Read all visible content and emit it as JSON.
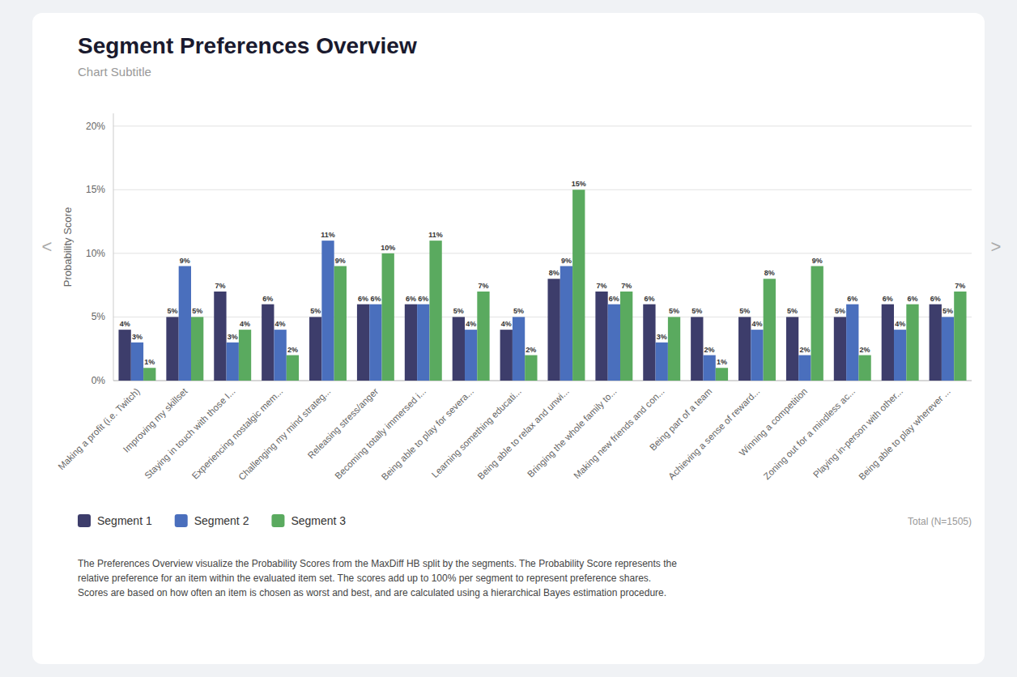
{
  "chart_data": {
    "type": "bar",
    "title": "Segment Preferences Overview",
    "subtitle": "Chart Subtitle",
    "ylabel": "Probability Score",
    "annotations": [
      "Total (N=1505)",
      "The Preferences Overview visualize the Probability Scores from the MaxDiff HB split by the segments. The Probability Score represents the\nrelative preference for an item within the evaluated item set. The scores add up to 100% per segment to represent preference shares.\nScores are based on how often an item is chosen as worst and best, and are calculated using a hierarchical Bayes estimation procedure.",
      "<",
      ">"
    ],
    "categories": [
      "Making a profit (i.e. Twitch)",
      "Improving my skillset",
      "Staying in touch with those I...",
      "Experiencing nostalgic mem...",
      "Challenging my mind strateg...",
      "Releasing stress/anger",
      "Becoming totally immersed i...",
      "Being able to play for severa...",
      "Learning something educati...",
      "Being able to relax and unwi...",
      "Bringing the whole family to...",
      "Making new friends and con...",
      "Being part of a team",
      "Achieving a sense of reward...",
      "Winning a competition",
      "Zoning out for a mindless ac...",
      "Playing in-person with other...",
      "Being able to play wherever ..."
    ],
    "series": [
      {
        "name": "Segment 1",
        "color": "#3d3d6b",
        "values": [
          4,
          5,
          7,
          6,
          5,
          6,
          6,
          5,
          4,
          8,
          7,
          6,
          5,
          5,
          5,
          5,
          6,
          6
        ],
        "value_labels": [
          "4%",
          "5%",
          "7%",
          "6%",
          "5%",
          "6%",
          "6%",
          "5%",
          "4%",
          "8%",
          "7%",
          "6%",
          "5%",
          "5%",
          "5%",
          "5%",
          "6%",
          "6%"
        ]
      },
      {
        "name": "Segment 2",
        "color": "#4a6fbd",
        "values": [
          3,
          9,
          3,
          4,
          11,
          6,
          6,
          4,
          5,
          9,
          6,
          3,
          2,
          4,
          2,
          6,
          4,
          5
        ],
        "value_labels": [
          "3%",
          "9%",
          "3%",
          "4%",
          "11%",
          "6%",
          "6%",
          "4%",
          "5%",
          "9%",
          "6%",
          "3%",
          "2%",
          "4%",
          "2%",
          "6%",
          "4%",
          "5%"
        ]
      },
      {
        "name": "Segment 3",
        "color": "#5aaa5f",
        "values": [
          1,
          5,
          4,
          2,
          9,
          10,
          11,
          7,
          2,
          15,
          7,
          5,
          1,
          8,
          9,
          2,
          6,
          7
        ],
        "value_labels": [
          "1%",
          "5%",
          "4%",
          "2%",
          "9%",
          "10%",
          "11%",
          "7%",
          "2%",
          "15%",
          "7%",
          "5%",
          "1%",
          "8%",
          "9%",
          "2%",
          "6%",
          "7%"
        ]
      }
    ],
    "ylim": [
      0,
      21
    ],
    "yticks": [
      {
        "value": 0,
        "label": "0%"
      },
      {
        "value": 5,
        "label": "5%"
      },
      {
        "value": 10,
        "label": "10%"
      },
      {
        "value": 15,
        "label": "15%"
      },
      {
        "value": 20,
        "label": "20%"
      }
    ],
    "grid": true,
    "legend": "lower left",
    "data_labels": true
  }
}
